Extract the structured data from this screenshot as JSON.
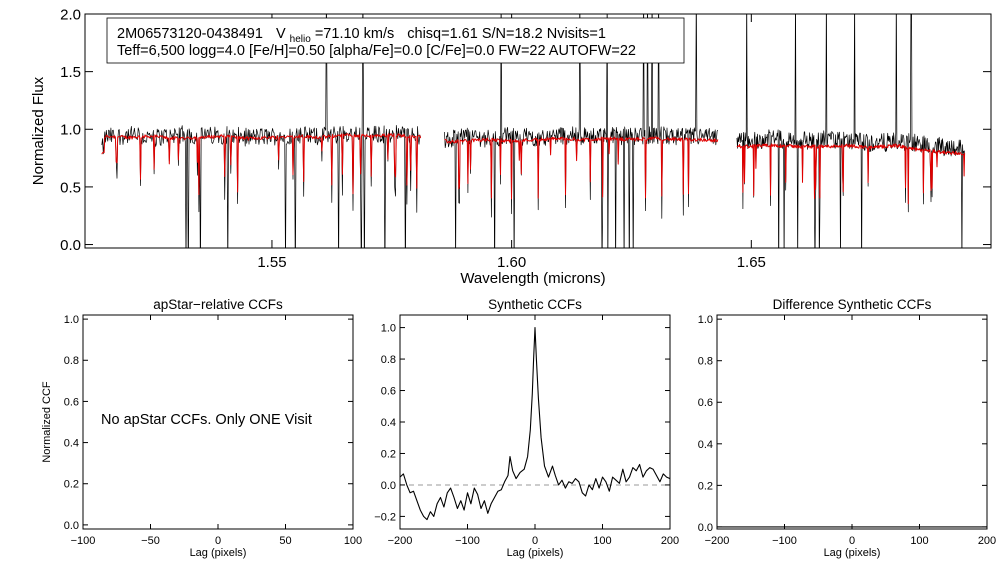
{
  "colors": {
    "axis": "#000000",
    "observed": "#000000",
    "model": "#e00000",
    "zero_line": "#999999",
    "box_border": "#000000"
  },
  "chart_data": [
    {
      "id": "spectrum",
      "type": "line",
      "title": "",
      "xlabel": "Wavelength (microns)",
      "ylabel": "Normalized Flux",
      "xlim": [
        1.511,
        1.7
      ],
      "ylim": [
        -0.03,
        2.0
      ],
      "xticks": [
        1.55,
        1.6,
        1.65
      ],
      "xtick_labels": [
        "1.55",
        "1.60",
        "1.65"
      ],
      "yticks": [
        0.0,
        0.5,
        1.0,
        1.5,
        2.0
      ],
      "ytick_labels": [
        "0.0",
        "0.5",
        "1.0",
        "1.5",
        "2.0"
      ],
      "chips": [
        [
          1.5145,
          1.581
        ],
        [
          1.586,
          1.643
        ],
        [
          1.647,
          1.6945
        ]
      ],
      "series": [
        {
          "name": "observed",
          "color": "#000000",
          "points": [
            [
              1.515,
              0.93
            ],
            [
              1.52,
              0.95
            ],
            [
              1.525,
              0.92
            ],
            [
              1.53,
              0.96
            ],
            [
              1.535,
              0.94
            ],
            [
              1.54,
              0.95
            ],
            [
              1.545,
              0.93
            ],
            [
              1.55,
              0.94
            ],
            [
              1.555,
              0.95
            ],
            [
              1.56,
              0.94
            ],
            [
              1.565,
              0.96
            ],
            [
              1.57,
              0.95
            ],
            [
              1.575,
              0.96
            ],
            [
              1.58,
              0.95
            ],
            [
              1.587,
              0.9
            ],
            [
              1.59,
              0.95
            ],
            [
              1.595,
              0.92
            ],
            [
              1.6,
              0.94
            ],
            [
              1.605,
              0.93
            ],
            [
              1.61,
              0.95
            ],
            [
              1.615,
              0.94
            ],
            [
              1.62,
              0.95
            ],
            [
              1.625,
              0.94
            ],
            [
              1.63,
              0.95
            ],
            [
              1.635,
              0.93
            ],
            [
              1.64,
              0.94
            ],
            [
              1.643,
              0.92
            ],
            [
              1.648,
              0.9
            ],
            [
              1.655,
              0.92
            ],
            [
              1.66,
              0.9
            ],
            [
              1.665,
              0.91
            ],
            [
              1.67,
              0.9
            ],
            [
              1.675,
              0.88
            ],
            [
              1.68,
              0.89
            ],
            [
              1.685,
              0.88
            ],
            [
              1.69,
              0.85
            ],
            [
              1.694,
              0.84
            ]
          ]
        },
        {
          "name": "model",
          "color": "#e00000",
          "points": [
            [
              1.515,
              0.94
            ],
            [
              1.52,
              0.93
            ],
            [
              1.525,
              0.94
            ],
            [
              1.53,
              0.92
            ],
            [
              1.535,
              0.93
            ],
            [
              1.54,
              0.94
            ],
            [
              1.545,
              0.92
            ],
            [
              1.55,
              0.93
            ],
            [
              1.555,
              0.94
            ],
            [
              1.56,
              0.93
            ],
            [
              1.565,
              0.95
            ],
            [
              1.57,
              0.94
            ],
            [
              1.575,
              0.95
            ],
            [
              1.58,
              0.94
            ],
            [
              1.587,
              0.89
            ],
            [
              1.59,
              0.9
            ],
            [
              1.595,
              0.91
            ],
            [
              1.6,
              0.9
            ],
            [
              1.605,
              0.91
            ],
            [
              1.61,
              0.92
            ],
            [
              1.615,
              0.91
            ],
            [
              1.62,
              0.92
            ],
            [
              1.625,
              0.91
            ],
            [
              1.63,
              0.92
            ],
            [
              1.635,
              0.91
            ],
            [
              1.64,
              0.91
            ],
            [
              1.643,
              0.9
            ],
            [
              1.648,
              0.85
            ],
            [
              1.655,
              0.86
            ],
            [
              1.66,
              0.85
            ],
            [
              1.665,
              0.85
            ],
            [
              1.67,
              0.86
            ],
            [
              1.675,
              0.84
            ],
            [
              1.68,
              0.86
            ],
            [
              1.685,
              0.82
            ],
            [
              1.69,
              0.8
            ],
            [
              1.694,
              0.79
            ]
          ]
        }
      ],
      "annotation": {
        "star_id": "2M06573120-0438491",
        "vhelio_label": "V",
        "vhelio_sub": "helio",
        "vhelio_value": "=71.10 km/s",
        "stats": "chisq=1.61  S/N=18.2  Nvisits=1",
        "params": "Teff=6,500 logg=4.0 [Fe/H]=0.50 [alpha/Fe]=0.0 [C/Fe]=0.0 FW=22 AUTOFW=22"
      }
    },
    {
      "id": "apstar",
      "type": "line",
      "title": "apStar−relative CCFs",
      "xlabel": "Lag (pixels)",
      "ylabel": "Normalized CCF",
      "xlim": [
        -100,
        100
      ],
      "ylim": [
        -0.02,
        1.02
      ],
      "xticks": [
        -100,
        -50,
        0,
        50,
        100
      ],
      "xtick_labels": [
        "−100",
        "−50",
        "0",
        "50",
        "100"
      ],
      "yticks": [
        0.0,
        0.2,
        0.4,
        0.6,
        0.8,
        1.0
      ],
      "ytick_labels": [
        "0.0",
        "0.2",
        "0.4",
        "0.6",
        "0.8",
        "1.0"
      ],
      "message": "No apStar CCFs.  Only ONE Visit",
      "series": []
    },
    {
      "id": "synthetic",
      "type": "line",
      "title": "Synthetic CCFs",
      "xlabel": "Lag (pixels)",
      "ylabel": "",
      "xlim": [
        -200,
        200
      ],
      "ylim": [
        -0.28,
        1.08
      ],
      "xticks": [
        -200,
        -100,
        0,
        100,
        200
      ],
      "xtick_labels": [
        "−200",
        "−100",
        "0",
        "100",
        "200"
      ],
      "yticks": [
        -0.2,
        0.0,
        0.2,
        0.4,
        0.6,
        0.8,
        1.0
      ],
      "ytick_labels": [
        "−0.2",
        "0.0",
        "0.2",
        "0.4",
        "0.6",
        "0.8",
        "1.0"
      ],
      "reference_line": 0.0,
      "series": [
        {
          "name": "ccf",
          "color": "#000000",
          "points": [
            [
              -200,
              0.05
            ],
            [
              -195,
              0.07
            ],
            [
              -190,
              0.0
            ],
            [
              -185,
              -0.05
            ],
            [
              -180,
              -0.04
            ],
            [
              -175,
              -0.1
            ],
            [
              -170,
              -0.16
            ],
            [
              -165,
              -0.2
            ],
            [
              -160,
              -0.22
            ],
            [
              -155,
              -0.17
            ],
            [
              -150,
              -0.2
            ],
            [
              -145,
              -0.12
            ],
            [
              -140,
              -0.08
            ],
            [
              -135,
              -0.14
            ],
            [
              -130,
              -0.05
            ],
            [
              -125,
              -0.02
            ],
            [
              -120,
              -0.08
            ],
            [
              -115,
              -0.15
            ],
            [
              -110,
              -0.1
            ],
            [
              -105,
              -0.16
            ],
            [
              -100,
              -0.05
            ],
            [
              -95,
              -0.12
            ],
            [
              -90,
              -0.02
            ],
            [
              -85,
              -0.06
            ],
            [
              -80,
              -0.15
            ],
            [
              -75,
              -0.1
            ],
            [
              -70,
              -0.18
            ],
            [
              -65,
              -0.12
            ],
            [
              -60,
              -0.08
            ],
            [
              -55,
              -0.04
            ],
            [
              -50,
              -0.03
            ],
            [
              -45,
              0.02
            ],
            [
              -40,
              0.06
            ],
            [
              -37,
              0.18
            ],
            [
              -33,
              0.09
            ],
            [
              -28,
              0.04
            ],
            [
              -22,
              0.08
            ],
            [
              -16,
              0.1
            ],
            [
              -11,
              0.18
            ],
            [
              -7,
              0.35
            ],
            [
              -4,
              0.58
            ],
            [
              -2,
              0.8
            ],
            [
              0,
              1.0
            ],
            [
              2,
              0.8
            ],
            [
              5,
              0.55
            ],
            [
              9,
              0.3
            ],
            [
              14,
              0.12
            ],
            [
              20,
              0.05
            ],
            [
              26,
              0.12
            ],
            [
              30,
              0.06
            ],
            [
              35,
              0.0
            ],
            [
              40,
              0.03
            ],
            [
              45,
              -0.02
            ],
            [
              50,
              0.02
            ],
            [
              55,
              0.01
            ],
            [
              60,
              0.04
            ],
            [
              65,
              0.02
            ],
            [
              70,
              -0.05
            ],
            [
              75,
              -0.07
            ],
            [
              80,
              0.0
            ],
            [
              85,
              -0.03
            ],
            [
              90,
              0.04
            ],
            [
              95,
              -0.02
            ],
            [
              100,
              0.05
            ],
            [
              105,
              0.02
            ],
            [
              110,
              -0.04
            ],
            [
              115,
              0.05
            ],
            [
              120,
              0.03
            ],
            [
              125,
              0.01
            ],
            [
              130,
              0.1
            ],
            [
              135,
              0.02
            ],
            [
              140,
              0.05
            ],
            [
              145,
              0.11
            ],
            [
              150,
              0.09
            ],
            [
              155,
              0.13
            ],
            [
              160,
              0.05
            ],
            [
              165,
              0.09
            ],
            [
              170,
              0.11
            ],
            [
              175,
              0.1
            ],
            [
              180,
              0.06
            ],
            [
              185,
              0.02
            ],
            [
              190,
              0.07
            ],
            [
              195,
              0.05
            ],
            [
              200,
              0.04
            ]
          ]
        }
      ]
    },
    {
      "id": "difference",
      "type": "line",
      "title": "Difference Synthetic CCFs",
      "xlabel": "Lag (pixels)",
      "ylabel": "",
      "xlim": [
        -200,
        200
      ],
      "ylim": [
        -0.01,
        1.02
      ],
      "xticks": [
        -200,
        -100,
        0,
        100,
        200
      ],
      "xtick_labels": [
        "−200",
        "−100",
        "0",
        "100",
        "200"
      ],
      "yticks": [
        0.0,
        0.2,
        0.4,
        0.6,
        0.8,
        1.0
      ],
      "ytick_labels": [
        "0.0",
        "0.2",
        "0.4",
        "0.6",
        "0.8",
        "1.0"
      ],
      "series": [
        {
          "name": "diff",
          "color": "#000000",
          "points": [
            [
              -200,
              0.0
            ],
            [
              200,
              0.0
            ]
          ]
        }
      ]
    }
  ]
}
